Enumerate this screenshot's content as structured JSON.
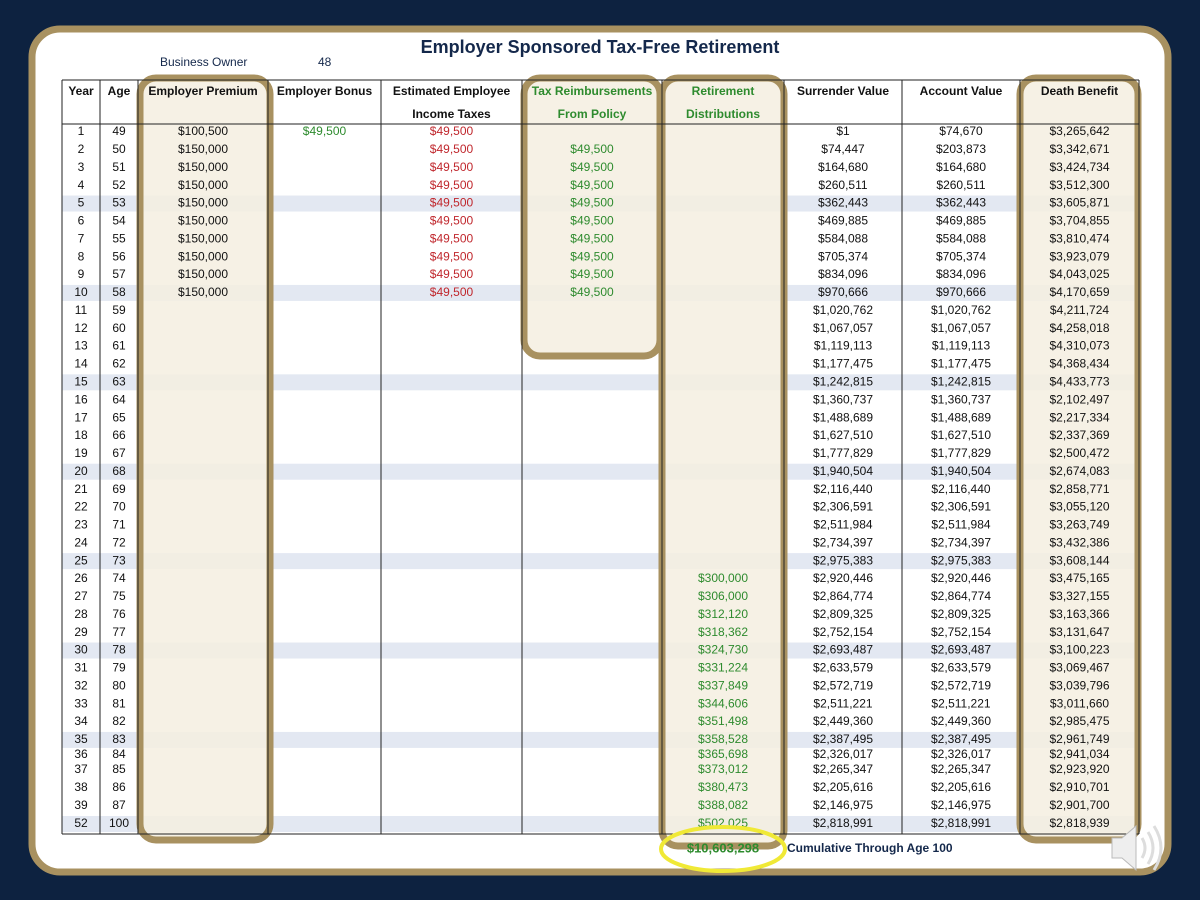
{
  "title": "Employer Sponsored Tax-Free Retirement",
  "owner": {
    "label": "Business Owner",
    "age": "48"
  },
  "table": {
    "columns": [
      [
        "Year"
      ],
      [
        "Age"
      ],
      [
        "Employer Premium"
      ],
      [
        "Employer Bonus"
      ],
      [
        "Estimated Employee",
        "Income Taxes"
      ],
      [
        "Tax Reimbursements",
        "From Policy"
      ],
      [
        "Retirement",
        "Distributions"
      ],
      [
        "Surrender Value"
      ],
      [
        "Account Value"
      ],
      [
        "Death Benefit"
      ]
    ],
    "rows": [
      [
        "1",
        "49",
        "$100,500",
        "$49,500",
        "$49,500",
        null,
        null,
        "$1",
        "$74,670",
        "$3,265,642"
      ],
      [
        "2",
        "50",
        "$150,000",
        null,
        "$49,500",
        "$49,500",
        null,
        "$74,447",
        "$203,873",
        "$3,342,671"
      ],
      [
        "3",
        "51",
        "$150,000",
        null,
        "$49,500",
        "$49,500",
        null,
        "$164,680",
        "$164,680",
        "$3,424,734"
      ],
      [
        "4",
        "52",
        "$150,000",
        null,
        "$49,500",
        "$49,500",
        null,
        "$260,511",
        "$260,511",
        "$3,512,300"
      ],
      [
        "5",
        "53",
        "$150,000",
        null,
        "$49,500",
        "$49,500",
        null,
        "$362,443",
        "$362,443",
        "$3,605,871"
      ],
      [
        "6",
        "54",
        "$150,000",
        null,
        "$49,500",
        "$49,500",
        null,
        "$469,885",
        "$469,885",
        "$3,704,855"
      ],
      [
        "7",
        "55",
        "$150,000",
        null,
        "$49,500",
        "$49,500",
        null,
        "$584,088",
        "$584,088",
        "$3,810,474"
      ],
      [
        "8",
        "56",
        "$150,000",
        null,
        "$49,500",
        "$49,500",
        null,
        "$705,374",
        "$705,374",
        "$3,923,079"
      ],
      [
        "9",
        "57",
        "$150,000",
        null,
        "$49,500",
        "$49,500",
        null,
        "$834,096",
        "$834,096",
        "$4,043,025"
      ],
      [
        "10",
        "58",
        "$150,000",
        null,
        "$49,500",
        "$49,500",
        null,
        "$970,666",
        "$970,666",
        "$4,170,659"
      ],
      [
        "11",
        "59",
        null,
        null,
        null,
        null,
        null,
        "$1,020,762",
        "$1,020,762",
        "$4,211,724"
      ],
      [
        "12",
        "60",
        null,
        null,
        null,
        null,
        null,
        "$1,067,057",
        "$1,067,057",
        "$4,258,018"
      ],
      [
        "13",
        "61",
        null,
        null,
        null,
        null,
        null,
        "$1,119,113",
        "$1,119,113",
        "$4,310,073"
      ],
      [
        "14",
        "62",
        null,
        null,
        null,
        null,
        null,
        "$1,177,475",
        "$1,177,475",
        "$4,368,434"
      ],
      [
        "15",
        "63",
        null,
        null,
        null,
        null,
        null,
        "$1,242,815",
        "$1,242,815",
        "$4,433,773"
      ],
      [
        "16",
        "64",
        null,
        null,
        null,
        null,
        null,
        "$1,360,737",
        "$1,360,737",
        "$2,102,497"
      ],
      [
        "17",
        "65",
        null,
        null,
        null,
        null,
        null,
        "$1,488,689",
        "$1,488,689",
        "$2,217,334"
      ],
      [
        "18",
        "66",
        null,
        null,
        null,
        null,
        null,
        "$1,627,510",
        "$1,627,510",
        "$2,337,369"
      ],
      [
        "19",
        "67",
        null,
        null,
        null,
        null,
        null,
        "$1,777,829",
        "$1,777,829",
        "$2,500,472"
      ],
      [
        "20",
        "68",
        null,
        null,
        null,
        null,
        null,
        "$1,940,504",
        "$1,940,504",
        "$2,674,083"
      ],
      [
        "21",
        "69",
        null,
        null,
        null,
        null,
        null,
        "$2,116,440",
        "$2,116,440",
        "$2,858,771"
      ],
      [
        "22",
        "70",
        null,
        null,
        null,
        null,
        null,
        "$2,306,591",
        "$2,306,591",
        "$3,055,120"
      ],
      [
        "23",
        "71",
        null,
        null,
        null,
        null,
        null,
        "$2,511,984",
        "$2,511,984",
        "$3,263,749"
      ],
      [
        "24",
        "72",
        null,
        null,
        null,
        null,
        null,
        "$2,734,397",
        "$2,734,397",
        "$3,432,386"
      ],
      [
        "25",
        "73",
        null,
        null,
        null,
        null,
        null,
        "$2,975,383",
        "$2,975,383",
        "$3,608,144"
      ],
      [
        "26",
        "74",
        null,
        null,
        null,
        null,
        "$300,000",
        "$2,920,446",
        "$2,920,446",
        "$3,475,165"
      ],
      [
        "27",
        "75",
        null,
        null,
        null,
        null,
        "$306,000",
        "$2,864,774",
        "$2,864,774",
        "$3,327,155"
      ],
      [
        "28",
        "76",
        null,
        null,
        null,
        null,
        "$312,120",
        "$2,809,325",
        "$2,809,325",
        "$3,163,366"
      ],
      [
        "29",
        "77",
        null,
        null,
        null,
        null,
        "$318,362",
        "$2,752,154",
        "$2,752,154",
        "$3,131,647"
      ],
      [
        "30",
        "78",
        null,
        null,
        null,
        null,
        "$324,730",
        "$2,693,487",
        "$2,693,487",
        "$3,100,223"
      ],
      [
        "31",
        "79",
        null,
        null,
        null,
        null,
        "$331,224",
        "$2,633,579",
        "$2,633,579",
        "$3,069,467"
      ],
      [
        "32",
        "80",
        null,
        null,
        null,
        null,
        "$337,849",
        "$2,572,719",
        "$2,572,719",
        "$3,039,796"
      ],
      [
        "33",
        "81",
        null,
        null,
        null,
        null,
        "$344,606",
        "$2,511,221",
        "$2,511,221",
        "$3,011,660"
      ],
      [
        "34",
        "82",
        null,
        null,
        null,
        null,
        "$351,498",
        "$2,449,360",
        "$2,449,360",
        "$2,985,475"
      ],
      [
        "35",
        "83",
        null,
        null,
        null,
        null,
        "$358,528",
        "$2,387,495",
        "$2,387,495",
        "$2,961,749"
      ],
      [
        "36",
        "84",
        null,
        null,
        null,
        null,
        "$365,698",
        "$2,326,017",
        "$2,326,017",
        "$2,941,034"
      ],
      [
        "37",
        "85",
        null,
        null,
        null,
        null,
        "$373,012",
        "$2,265,347",
        "$2,265,347",
        "$2,923,920"
      ],
      [
        "38",
        "86",
        null,
        null,
        null,
        null,
        "$380,473",
        "$2,205,616",
        "$2,205,616",
        "$2,910,701"
      ],
      [
        "39",
        "87",
        null,
        null,
        null,
        null,
        "$388,082",
        "$2,146,975",
        "$2,146,975",
        "$2,901,700"
      ],
      [
        "52",
        "100",
        null,
        null,
        null,
        null,
        "$502,025",
        "$2,818,991",
        "$2,818,991",
        "$2,818,939"
      ]
    ]
  },
  "total": {
    "value": "$10,603,298",
    "label": "Cumulative Through Age 100"
  }
}
